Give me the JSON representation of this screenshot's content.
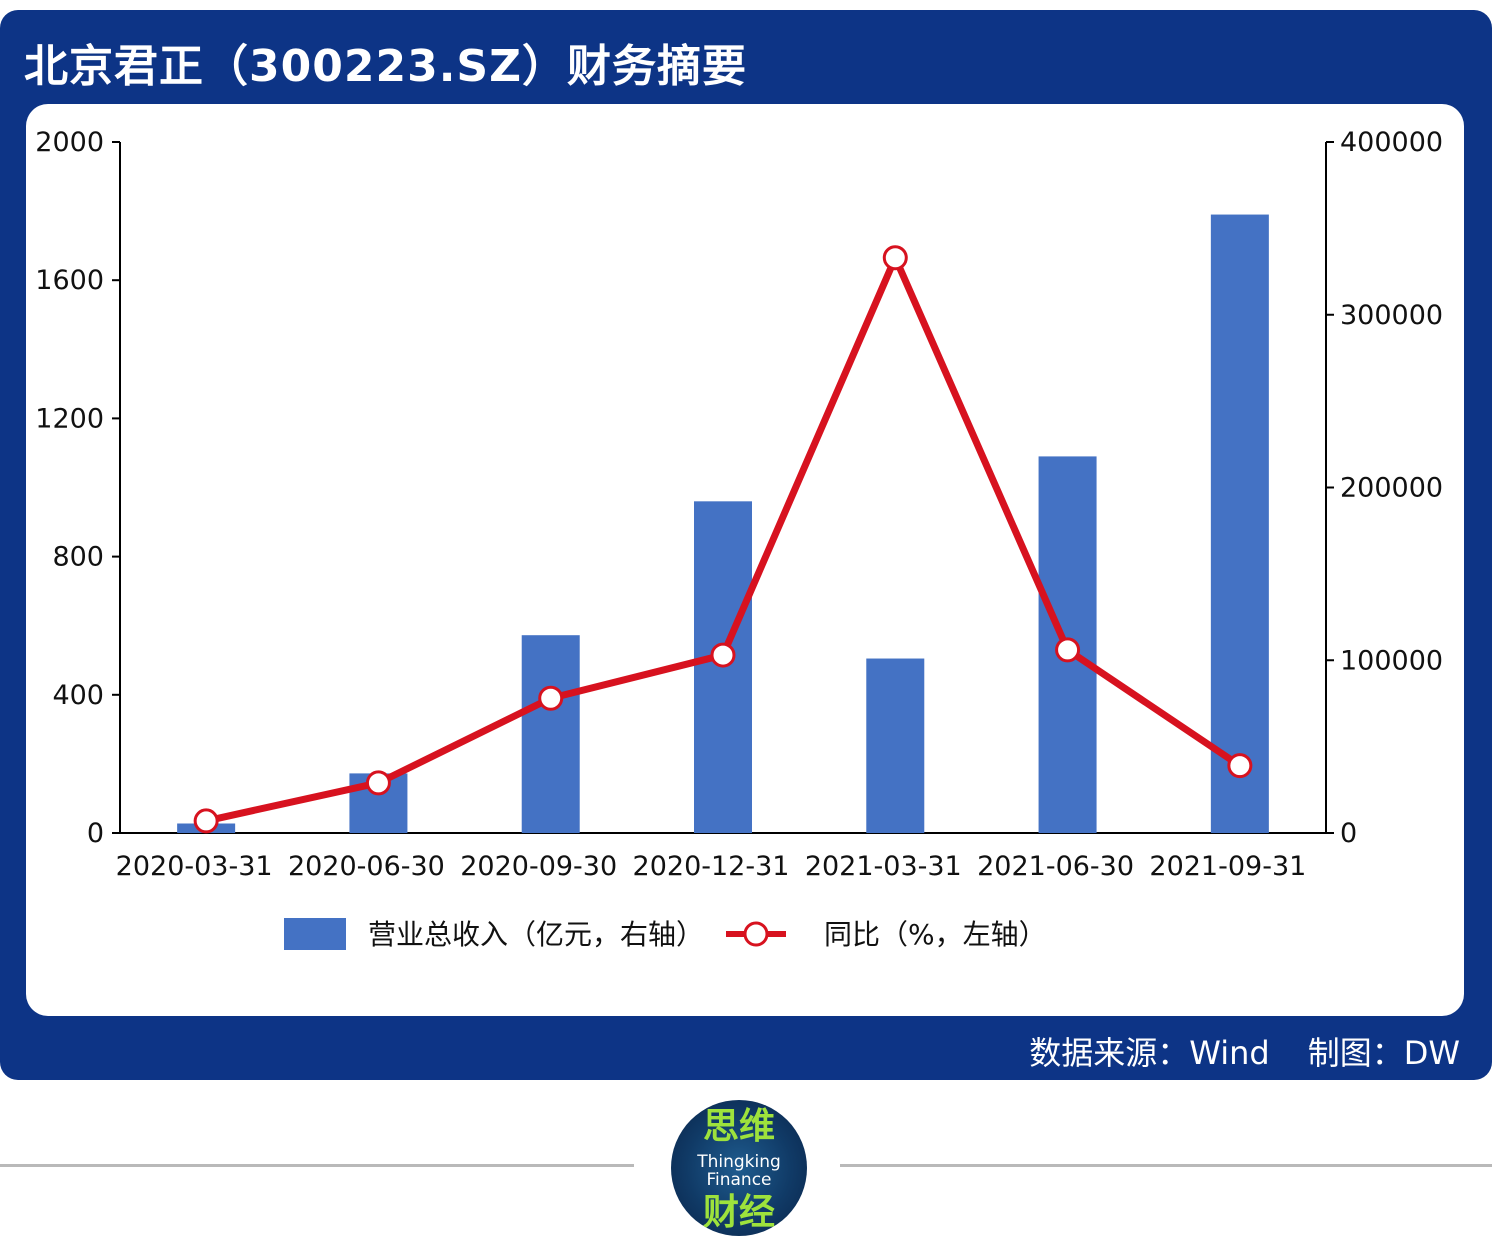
{
  "header": {
    "title": "北京君正（300223.SZ）财务摘要"
  },
  "footer": {
    "source": "数据来源：Wind",
    "made_by": "制图：DW"
  },
  "logo": {
    "cn_top": "思维",
    "en_line1": "Thingking",
    "en_line2": "Finance",
    "cn_bottom": "财经"
  },
  "colors": {
    "panel": "#0d3486",
    "bar": "#4472c4",
    "line": "#d7121f",
    "separator": "#b9b9b9",
    "logo_text": "#9ee23c"
  },
  "chart_data": {
    "type": "bar",
    "categories": [
      "2020-03-31",
      "2020-06-30",
      "2020-09-30",
      "2020-12-31",
      "2021-03-31",
      "2021-06-30",
      "2021-09-31"
    ],
    "series": [
      {
        "name": "营业总收入（亿元，右轴）",
        "kind": "bar",
        "axis": "right",
        "values": [
          5500,
          34500,
          114500,
          192000,
          101000,
          218000,
          358000
        ]
      },
      {
        "name": "同比（%，左轴）",
        "kind": "line",
        "axis": "left",
        "values": [
          35,
          145,
          390,
          515,
          1665,
          530,
          195
        ]
      }
    ],
    "left_axis": {
      "min": 0,
      "max": 2000,
      "ticks": [
        "2000",
        "1600",
        "1200",
        "800",
        "400",
        "0"
      ]
    },
    "right_axis": {
      "min": 0,
      "max": 400000,
      "ticks": [
        "400000",
        "300000",
        "200000",
        "100000",
        "0"
      ]
    },
    "grid": false,
    "legend_position": "bottom"
  }
}
